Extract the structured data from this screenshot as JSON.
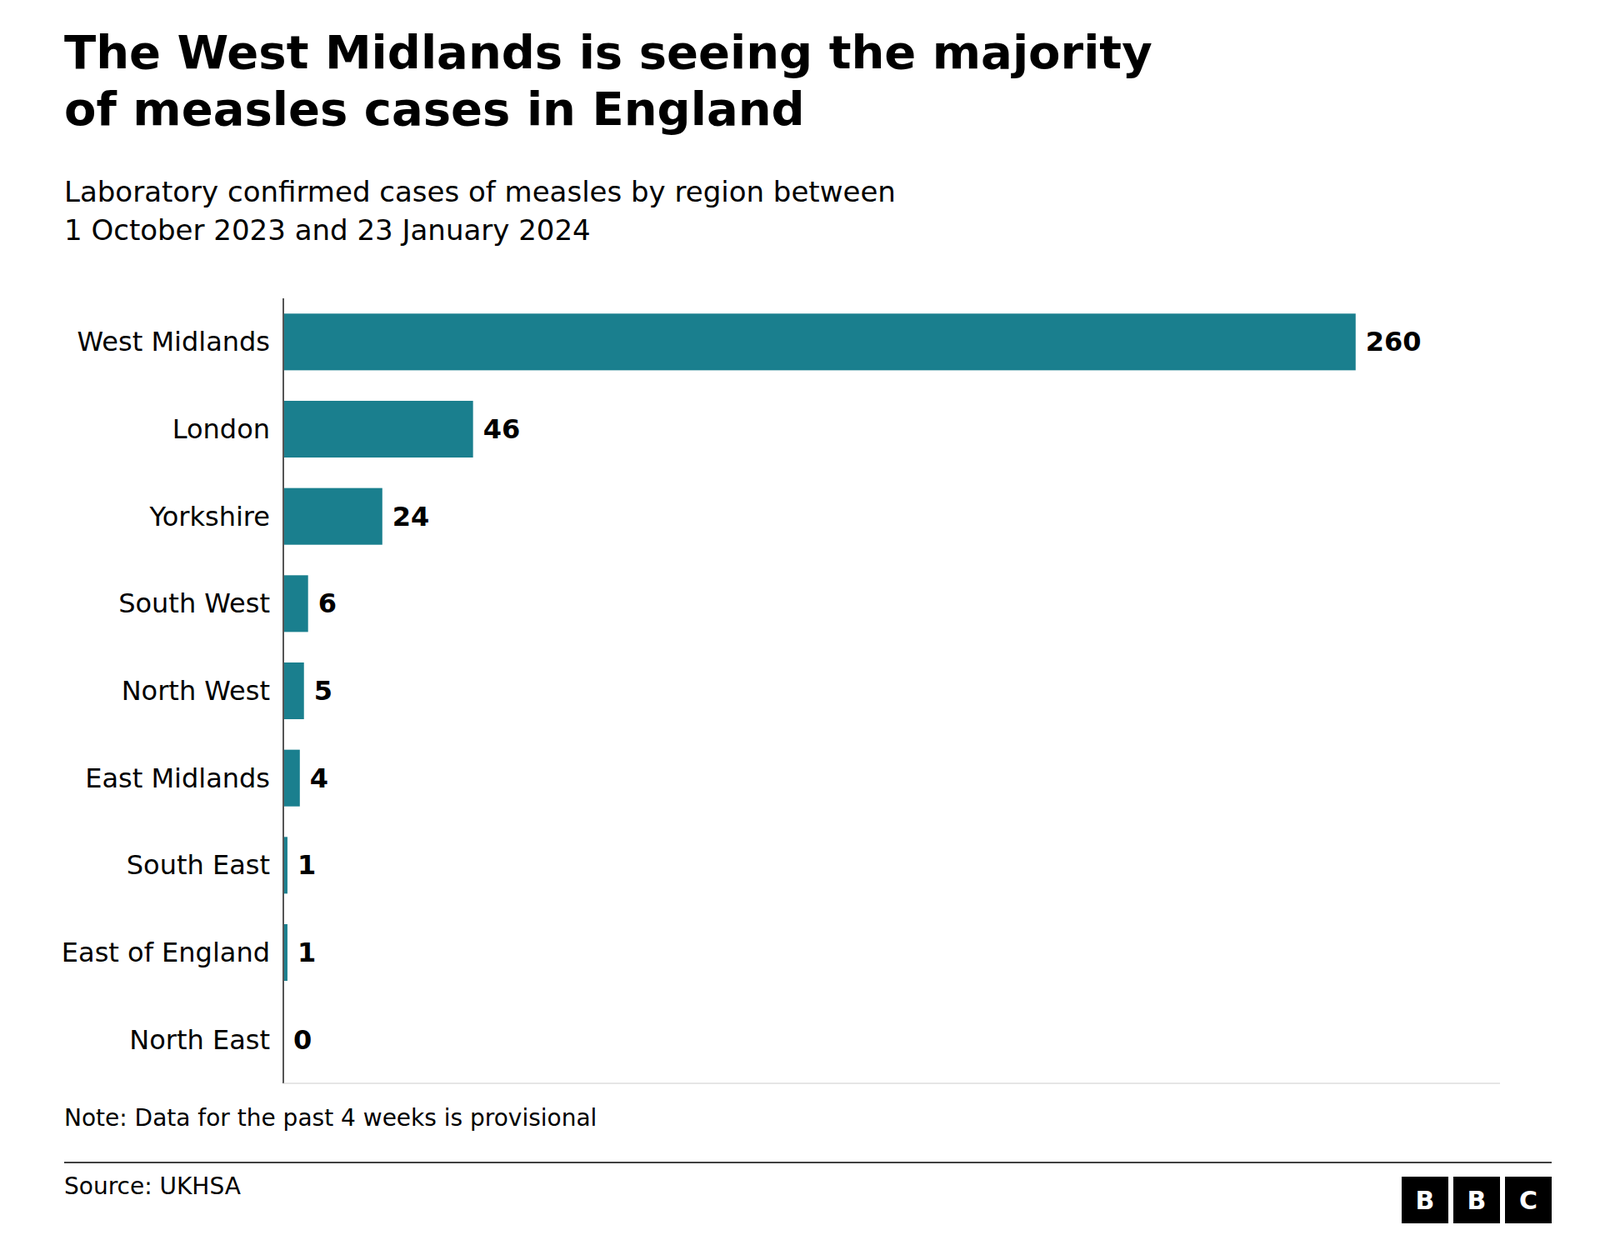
{
  "chart_data": {
    "type": "bar",
    "orientation": "horizontal",
    "title": "The West Midlands is seeing the majority\nof measles cases in England",
    "subtitle": "Laboratory confirmed cases of measles by region between\n1 October 2023 and 23 January 2024",
    "note": "Note: Data for the past 4 weeks is provisional",
    "source": "Source: UKHSA",
    "categories": [
      "West Midlands",
      "London",
      "Yorkshire",
      "South West",
      "North West",
      "East Midlands",
      "South East",
      "East of England",
      "North East"
    ],
    "values": [
      260,
      46,
      24,
      6,
      5,
      4,
      1,
      1,
      0
    ],
    "color": "#1a7f8e",
    "xlim": [
      0,
      295
    ],
    "data_labels": true,
    "tick_labels": "y",
    "grid": false,
    "annotations": [
      "B",
      "B",
      "C"
    ]
  }
}
